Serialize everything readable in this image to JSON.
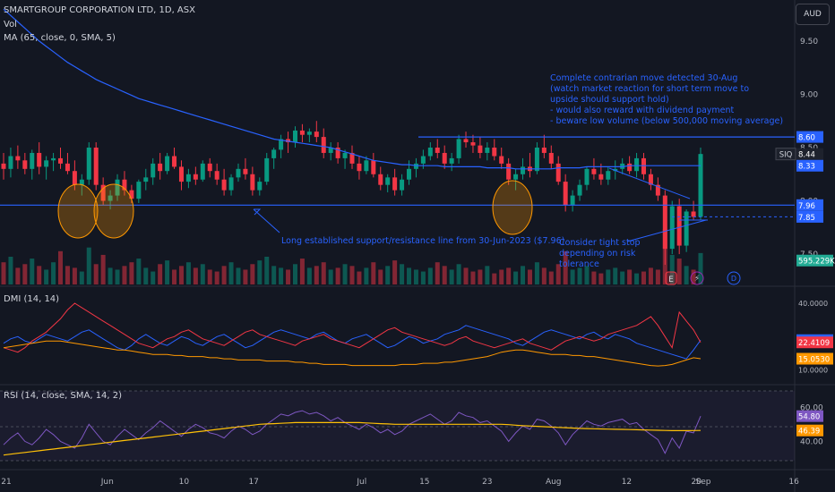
{
  "header": {
    "title": "SMARTGROUP CORPORATION LTD, 1D, ASX",
    "vol": "Vol",
    "ma": "MA (65, close, 0, SMA, 5)",
    "dmi": "DMI (14, 14)",
    "rsi": "RSI (14, close, SMA, 14, 2)",
    "currency": "AUD"
  },
  "annotations": {
    "contrarian": [
      "Complete contrarian move detected 30-Aug",
      "(watch market reaction for short term move to",
      "upside should support hold)",
      "- would also reward with dividend payment",
      "- beware low volume (below 500,000 moving average)"
    ],
    "support": "Long established support/resistance line from 30-Jun-2023 ($7.96)",
    "stop": [
      "Consider tight stop",
      "depending on risk",
      "tolerance"
    ],
    "markers": {
      "earnings": "E",
      "split": "⚡",
      "dividend": "D"
    }
  },
  "price_axis": {
    "ticks": [
      "9.50",
      "9.00",
      "8.50",
      "8.00",
      "7.50"
    ],
    "badges": [
      {
        "label": "8.60",
        "value": 8.6,
        "color": "#2962ff"
      },
      {
        "label": "8.44",
        "value": 8.44,
        "color": "#1e222d",
        "prefix": "SIQ"
      },
      {
        "label": "8.33",
        "value": 8.33,
        "color": "#2962ff"
      },
      {
        "label": "7.96",
        "value": 7.96,
        "color": "#2962ff"
      },
      {
        "label": "7.85",
        "value": 7.85,
        "color": "#2962ff"
      },
      {
        "label": "595.229K",
        "value": 7.44,
        "color": "#22ab94"
      }
    ]
  },
  "dmi_axis": {
    "ticks": [
      "40.0000",
      "10.0000"
    ],
    "badges": [
      {
        "label": "23.4110",
        "value": 23.4,
        "color": "#2962ff"
      },
      {
        "label": "22.4109",
        "value": 22.4,
        "color": "#f23645"
      },
      {
        "label": "15.0530",
        "value": 15.05,
        "color": "#ff9800"
      }
    ]
  },
  "rsi_axis": {
    "ticks": [
      "60.00",
      "40.00"
    ],
    "badges": [
      {
        "label": "54.80",
        "value": 54.8,
        "color": "#7e57c2"
      },
      {
        "label": "46.39",
        "value": 46.39,
        "color": "#ff9800"
      }
    ]
  },
  "x_axis": [
    "21",
    "Jun",
    "10",
    "17",
    "Jul",
    "15",
    "23",
    "Aug",
    "12",
    "20",
    "Sep",
    "16"
  ],
  "chart_data": {
    "type": "candlestick",
    "title": "SMARTGROUP CORPORATION LTD, 1D, ASX",
    "ohlc": [
      [
        8.35,
        8.45,
        8.2,
        8.3
      ],
      [
        8.3,
        8.5,
        8.22,
        8.42
      ],
      [
        8.42,
        8.52,
        8.3,
        8.38
      ],
      [
        8.38,
        8.45,
        8.25,
        8.3
      ],
      [
        8.3,
        8.48,
        8.2,
        8.45
      ],
      [
        8.45,
        8.55,
        8.25,
        8.32
      ],
      [
        8.32,
        8.42,
        8.2,
        8.38
      ],
      [
        8.38,
        8.45,
        8.28,
        8.4
      ],
      [
        8.4,
        8.5,
        8.3,
        8.35
      ],
      [
        8.35,
        8.45,
        8.25,
        8.28
      ],
      [
        8.28,
        8.38,
        8.1,
        8.15
      ],
      [
        8.15,
        8.25,
        8.05,
        8.2
      ],
      [
        8.2,
        8.55,
        8.15,
        8.5
      ],
      [
        8.5,
        8.55,
        8.1,
        8.15
      ],
      [
        8.15,
        8.22,
        7.96,
        8.0
      ],
      [
        8.0,
        8.1,
        7.92,
        8.05
      ],
      [
        8.05,
        8.25,
        8.0,
        8.2
      ],
      [
        8.2,
        8.28,
        8.05,
        8.1
      ],
      [
        8.1,
        8.15,
        7.98,
        8.02
      ],
      [
        8.02,
        8.2,
        7.98,
        8.18
      ],
      [
        8.18,
        8.3,
        8.1,
        8.22
      ],
      [
        8.22,
        8.4,
        8.15,
        8.35
      ],
      [
        8.35,
        8.45,
        8.2,
        8.28
      ],
      [
        8.28,
        8.45,
        8.25,
        8.42
      ],
      [
        8.42,
        8.5,
        8.3,
        8.32
      ],
      [
        8.32,
        8.38,
        8.1,
        8.18
      ],
      [
        8.18,
        8.3,
        8.12,
        8.25
      ],
      [
        8.25,
        8.32,
        8.15,
        8.2
      ],
      [
        8.2,
        8.38,
        8.18,
        8.35
      ],
      [
        8.35,
        8.4,
        8.22,
        8.28
      ],
      [
        8.28,
        8.35,
        8.15,
        8.2
      ],
      [
        8.2,
        8.3,
        8.05,
        8.1
      ],
      [
        8.1,
        8.25,
        8.05,
        8.22
      ],
      [
        8.22,
        8.35,
        8.18,
        8.3
      ],
      [
        8.3,
        8.4,
        8.2,
        8.25
      ],
      [
        8.25,
        8.32,
        8.05,
        8.1
      ],
      [
        8.1,
        8.22,
        8.05,
        8.18
      ],
      [
        8.18,
        8.45,
        8.15,
        8.4
      ],
      [
        8.4,
        8.5,
        8.3,
        8.48
      ],
      [
        8.48,
        8.62,
        8.4,
        8.58
      ],
      [
        8.58,
        8.65,
        8.45,
        8.55
      ],
      [
        8.55,
        8.7,
        8.5,
        8.66
      ],
      [
        8.66,
        8.72,
        8.55,
        8.62
      ],
      [
        8.62,
        8.68,
        8.55,
        8.65
      ],
      [
        8.65,
        8.75,
        8.55,
        8.6
      ],
      [
        8.6,
        8.68,
        8.4,
        8.45
      ],
      [
        8.45,
        8.55,
        8.38,
        8.5
      ],
      [
        8.5,
        8.55,
        8.35,
        8.4
      ],
      [
        8.4,
        8.48,
        8.3,
        8.45
      ],
      [
        8.45,
        8.52,
        8.3,
        8.35
      ],
      [
        8.35,
        8.42,
        8.2,
        8.28
      ],
      [
        8.28,
        8.42,
        8.25,
        8.38
      ],
      [
        8.38,
        8.45,
        8.22,
        8.25
      ],
      [
        8.25,
        8.32,
        8.1,
        8.15
      ],
      [
        8.15,
        8.25,
        8.08,
        8.22
      ],
      [
        8.22,
        8.3,
        8.05,
        8.1
      ],
      [
        8.1,
        8.25,
        8.05,
        8.2
      ],
      [
        8.2,
        8.38,
        8.15,
        8.3
      ],
      [
        8.3,
        8.4,
        8.22,
        8.35
      ],
      [
        8.35,
        8.48,
        8.3,
        8.42
      ],
      [
        8.42,
        8.55,
        8.38,
        8.5
      ],
      [
        8.5,
        8.58,
        8.4,
        8.45
      ],
      [
        8.45,
        8.52,
        8.3,
        8.35
      ],
      [
        8.35,
        8.45,
        8.28,
        8.4
      ],
      [
        8.4,
        8.62,
        8.35,
        8.58
      ],
      [
        8.58,
        8.65,
        8.5,
        8.55
      ],
      [
        8.55,
        8.62,
        8.45,
        8.52
      ],
      [
        8.52,
        8.6,
        8.4,
        8.45
      ],
      [
        8.45,
        8.55,
        8.38,
        8.5
      ],
      [
        8.5,
        8.58,
        8.38,
        8.42
      ],
      [
        8.42,
        8.5,
        8.3,
        8.35
      ],
      [
        8.35,
        8.4,
        8.15,
        8.2
      ],
      [
        8.2,
        8.3,
        8.1,
        8.25
      ],
      [
        8.25,
        8.4,
        8.2,
        8.32
      ],
      [
        8.32,
        8.45,
        8.22,
        8.28
      ],
      [
        8.28,
        8.55,
        8.25,
        8.5
      ],
      [
        8.5,
        8.62,
        8.4,
        8.45
      ],
      [
        8.45,
        8.52,
        8.3,
        8.35
      ],
      [
        8.35,
        8.42,
        8.15,
        8.18
      ],
      [
        8.18,
        8.25,
        7.9,
        7.96
      ],
      [
        7.96,
        8.1,
        7.9,
        8.05
      ],
      [
        8.05,
        8.2,
        8.0,
        8.15
      ],
      [
        8.15,
        8.32,
        8.1,
        8.3
      ],
      [
        8.3,
        8.4,
        8.2,
        8.25
      ],
      [
        8.25,
        8.35,
        8.15,
        8.2
      ],
      [
        8.2,
        8.32,
        8.15,
        8.28
      ],
      [
        8.28,
        8.38,
        8.2,
        8.3
      ],
      [
        8.3,
        8.4,
        8.25,
        8.35
      ],
      [
        8.35,
        8.42,
        8.25,
        8.28
      ],
      [
        8.28,
        8.45,
        8.22,
        8.4
      ],
      [
        8.4,
        8.45,
        8.2,
        8.25
      ],
      [
        8.25,
        8.3,
        8.1,
        8.15
      ],
      [
        8.15,
        8.22,
        8.0,
        8.05
      ],
      [
        8.05,
        8.1,
        7.4,
        7.55
      ],
      [
        7.55,
        8.0,
        7.5,
        7.95
      ],
      [
        7.95,
        8.02,
        7.5,
        7.58
      ],
      [
        7.58,
        7.92,
        7.52,
        7.9
      ],
      [
        7.9,
        8.0,
        7.82,
        7.85
      ],
      [
        7.85,
        8.5,
        7.82,
        8.44
      ]
    ],
    "volume": [
      12,
      15,
      9,
      11,
      14,
      10,
      8,
      12,
      18,
      10,
      9,
      7,
      20,
      11,
      16,
      9,
      8,
      10,
      12,
      14,
      9,
      7,
      11,
      13,
      8,
      10,
      12,
      9,
      11,
      8,
      7,
      10,
      12,
      9,
      8,
      11,
      13,
      15,
      10,
      9,
      8,
      11,
      14,
      9,
      10,
      12,
      8,
      9,
      11,
      10,
      7,
      9,
      12,
      8,
      10,
      13,
      11,
      9,
      8,
      7,
      9,
      12,
      10,
      8,
      11,
      9,
      7,
      8,
      10,
      6,
      8,
      9,
      7,
      10,
      8,
      12,
      9,
      7,
      11,
      18,
      8,
      9,
      10,
      7,
      6,
      8,
      9,
      7,
      8,
      6,
      7,
      9,
      8,
      30,
      16,
      14,
      10,
      8,
      17
    ],
    "ma": [
      9.8,
      9.74,
      9.68,
      9.62,
      9.56,
      9.5,
      9.45,
      9.4,
      9.35,
      9.3,
      9.26,
      9.22,
      9.18,
      9.14,
      9.11,
      9.08,
      9.05,
      9.02,
      8.99,
      8.96,
      8.94,
      8.92,
      8.9,
      8.88,
      8.86,
      8.84,
      8.82,
      8.8,
      8.78,
      8.76,
      8.74,
      8.72,
      8.7,
      8.68,
      8.66,
      8.64,
      8.62,
      8.6,
      8.58,
      8.57,
      8.56,
      8.55,
      8.54,
      8.53,
      8.52,
      8.51,
      8.5,
      8.48,
      8.46,
      8.44,
      8.42,
      8.4,
      8.38,
      8.37,
      8.36,
      8.35,
      8.34,
      8.34,
      8.33,
      8.33,
      8.33,
      8.33,
      8.32,
      8.32,
      8.32,
      8.32,
      8.32,
      8.32,
      8.31,
      8.31,
      8.31,
      8.31,
      8.3,
      8.3,
      8.3,
      8.3,
      8.3,
      8.3,
      8.31,
      8.31,
      8.31,
      8.31,
      8.32,
      8.32,
      8.32,
      8.32,
      8.32,
      8.32,
      8.33,
      8.33,
      8.33,
      8.33,
      8.33,
      8.33,
      8.33,
      8.33,
      8.33,
      8.33,
      8.33
    ],
    "dmi_plus": [
      22,
      24,
      25,
      23,
      22,
      24,
      26,
      25,
      24,
      23,
      25,
      27,
      28,
      26,
      24,
      22,
      20,
      19,
      21,
      24,
      26,
      24,
      22,
      21,
      23,
      25,
      24,
      22,
      21,
      23,
      25,
      26,
      24,
      22,
      20,
      21,
      23,
      25,
      27,
      28,
      27,
      26,
      25,
      24,
      26,
      27,
      25,
      23,
      22,
      24,
      25,
      26,
      24,
      22,
      20,
      21,
      23,
      25,
      24,
      22,
      23,
      24,
      26,
      27,
      28,
      30,
      29,
      28,
      27,
      26,
      25,
      24,
      22,
      21,
      23,
      25,
      27,
      28,
      27,
      26,
      25,
      24,
      26,
      27,
      25,
      24,
      26,
      25,
      24,
      22,
      21,
      20,
      19,
      18,
      17,
      16,
      15,
      19,
      23.4
    ],
    "dmi_minus": [
      20,
      19,
      18,
      20,
      23,
      25,
      27,
      30,
      33,
      37,
      40,
      38,
      36,
      34,
      32,
      30,
      28,
      26,
      24,
      22,
      21,
      20,
      22,
      24,
      25,
      27,
      28,
      26,
      24,
      23,
      22,
      21,
      23,
      25,
      27,
      28,
      26,
      25,
      24,
      23,
      22,
      21,
      23,
      24,
      25,
      26,
      24,
      23,
      22,
      21,
      20,
      22,
      24,
      26,
      28,
      29,
      27,
      26,
      25,
      24,
      23,
      22,
      21,
      22,
      24,
      25,
      23,
      22,
      21,
      20,
      21,
      22,
      23,
      24,
      22,
      21,
      20,
      19,
      21,
      23,
      24,
      25,
      24,
      23,
      24,
      26,
      27,
      28,
      29,
      30,
      32,
      34,
      30,
      25,
      20,
      36,
      32,
      28,
      22.4
    ],
    "dmi_adx": [
      20,
      20.5,
      21,
      21.5,
      22,
      22.5,
      23,
      23,
      23,
      22.5,
      22,
      21.5,
      21,
      20.5,
      20,
      19.5,
      19,
      19,
      18.5,
      18,
      17.5,
      17,
      17,
      17,
      16.5,
      16.5,
      16,
      16,
      16,
      15.5,
      15.5,
      15,
      15,
      14.5,
      14.5,
      14.5,
      14.5,
      14,
      14,
      14,
      14,
      13.5,
      13.5,
      13,
      13,
      12.5,
      12.5,
      12.5,
      12.5,
      12,
      12,
      12,
      12,
      12,
      12,
      12,
      12.5,
      12.5,
      12.5,
      13,
      13,
      13,
      13.5,
      13.5,
      14,
      14.5,
      15,
      15.5,
      16,
      17,
      18,
      18.5,
      19,
      19,
      18.5,
      18,
      17.5,
      17,
      17,
      17,
      16.5,
      16.5,
      16,
      16,
      15.5,
      15,
      14.5,
      14,
      13.5,
      13,
      12.5,
      12,
      11.8,
      12,
      12.5,
      13.5,
      14.5,
      15.5,
      15.05
    ],
    "rsi": [
      38,
      42,
      45,
      40,
      38,
      42,
      47,
      44,
      40,
      38,
      36,
      42,
      50,
      45,
      40,
      38,
      43,
      47,
      44,
      41,
      45,
      48,
      52,
      49,
      46,
      43,
      47,
      50,
      48,
      45,
      44,
      42,
      46,
      49,
      47,
      44,
      46,
      50,
      53,
      56,
      55,
      57,
      58,
      56,
      57,
      55,
      52,
      54,
      51,
      49,
      47,
      50,
      48,
      45,
      47,
      44,
      46,
      50,
      52,
      54,
      56,
      53,
      50,
      52,
      57,
      55,
      54,
      51,
      52,
      49,
      46,
      40,
      45,
      49,
      47,
      53,
      52,
      49,
      45,
      38,
      44,
      48,
      52,
      50,
      49,
      51,
      52,
      53,
      50,
      51,
      47,
      44,
      41,
      33,
      42,
      36,
      46,
      45,
      54.8
    ],
    "rsi_ma": [
      32,
      32.5,
      33,
      33.5,
      34,
      34.5,
      35,
      35.5,
      36,
      36.5,
      37,
      37.5,
      38,
      38.5,
      39,
      39.5,
      40,
      40.5,
      41,
      41.5,
      42,
      42.5,
      43,
      43.5,
      44,
      44.5,
      45,
      45.5,
      46,
      46.5,
      47,
      47.5,
      48,
      48.5,
      49,
      49.5,
      50,
      50.2,
      50.4,
      50.6,
      50.8,
      51,
      51,
      51,
      51,
      51,
      51,
      51,
      51,
      51,
      51,
      50.8,
      50.6,
      50.4,
      50.2,
      50,
      50,
      50,
      50,
      50,
      50,
      50,
      50,
      50,
      50,
      50,
      50,
      50,
      50,
      50,
      50,
      49.8,
      49.5,
      49.2,
      49,
      48.8,
      48.6,
      48.4,
      48.2,
      48,
      47.8,
      47.6,
      47.5,
      47.4,
      47.3,
      47.2,
      47.1,
      47,
      46.9,
      46.8,
      46.7,
      46.6,
      46.5,
      46.4,
      46.3,
      46.3,
      46.3,
      46.35,
      46.39
    ],
    "support_level": 7.96,
    "resistance_level": 8.6,
    "price_range": [
      7.4,
      9.6
    ],
    "dmi_range": [
      5,
      42
    ],
    "rsi_range": [
      25,
      68
    ]
  }
}
